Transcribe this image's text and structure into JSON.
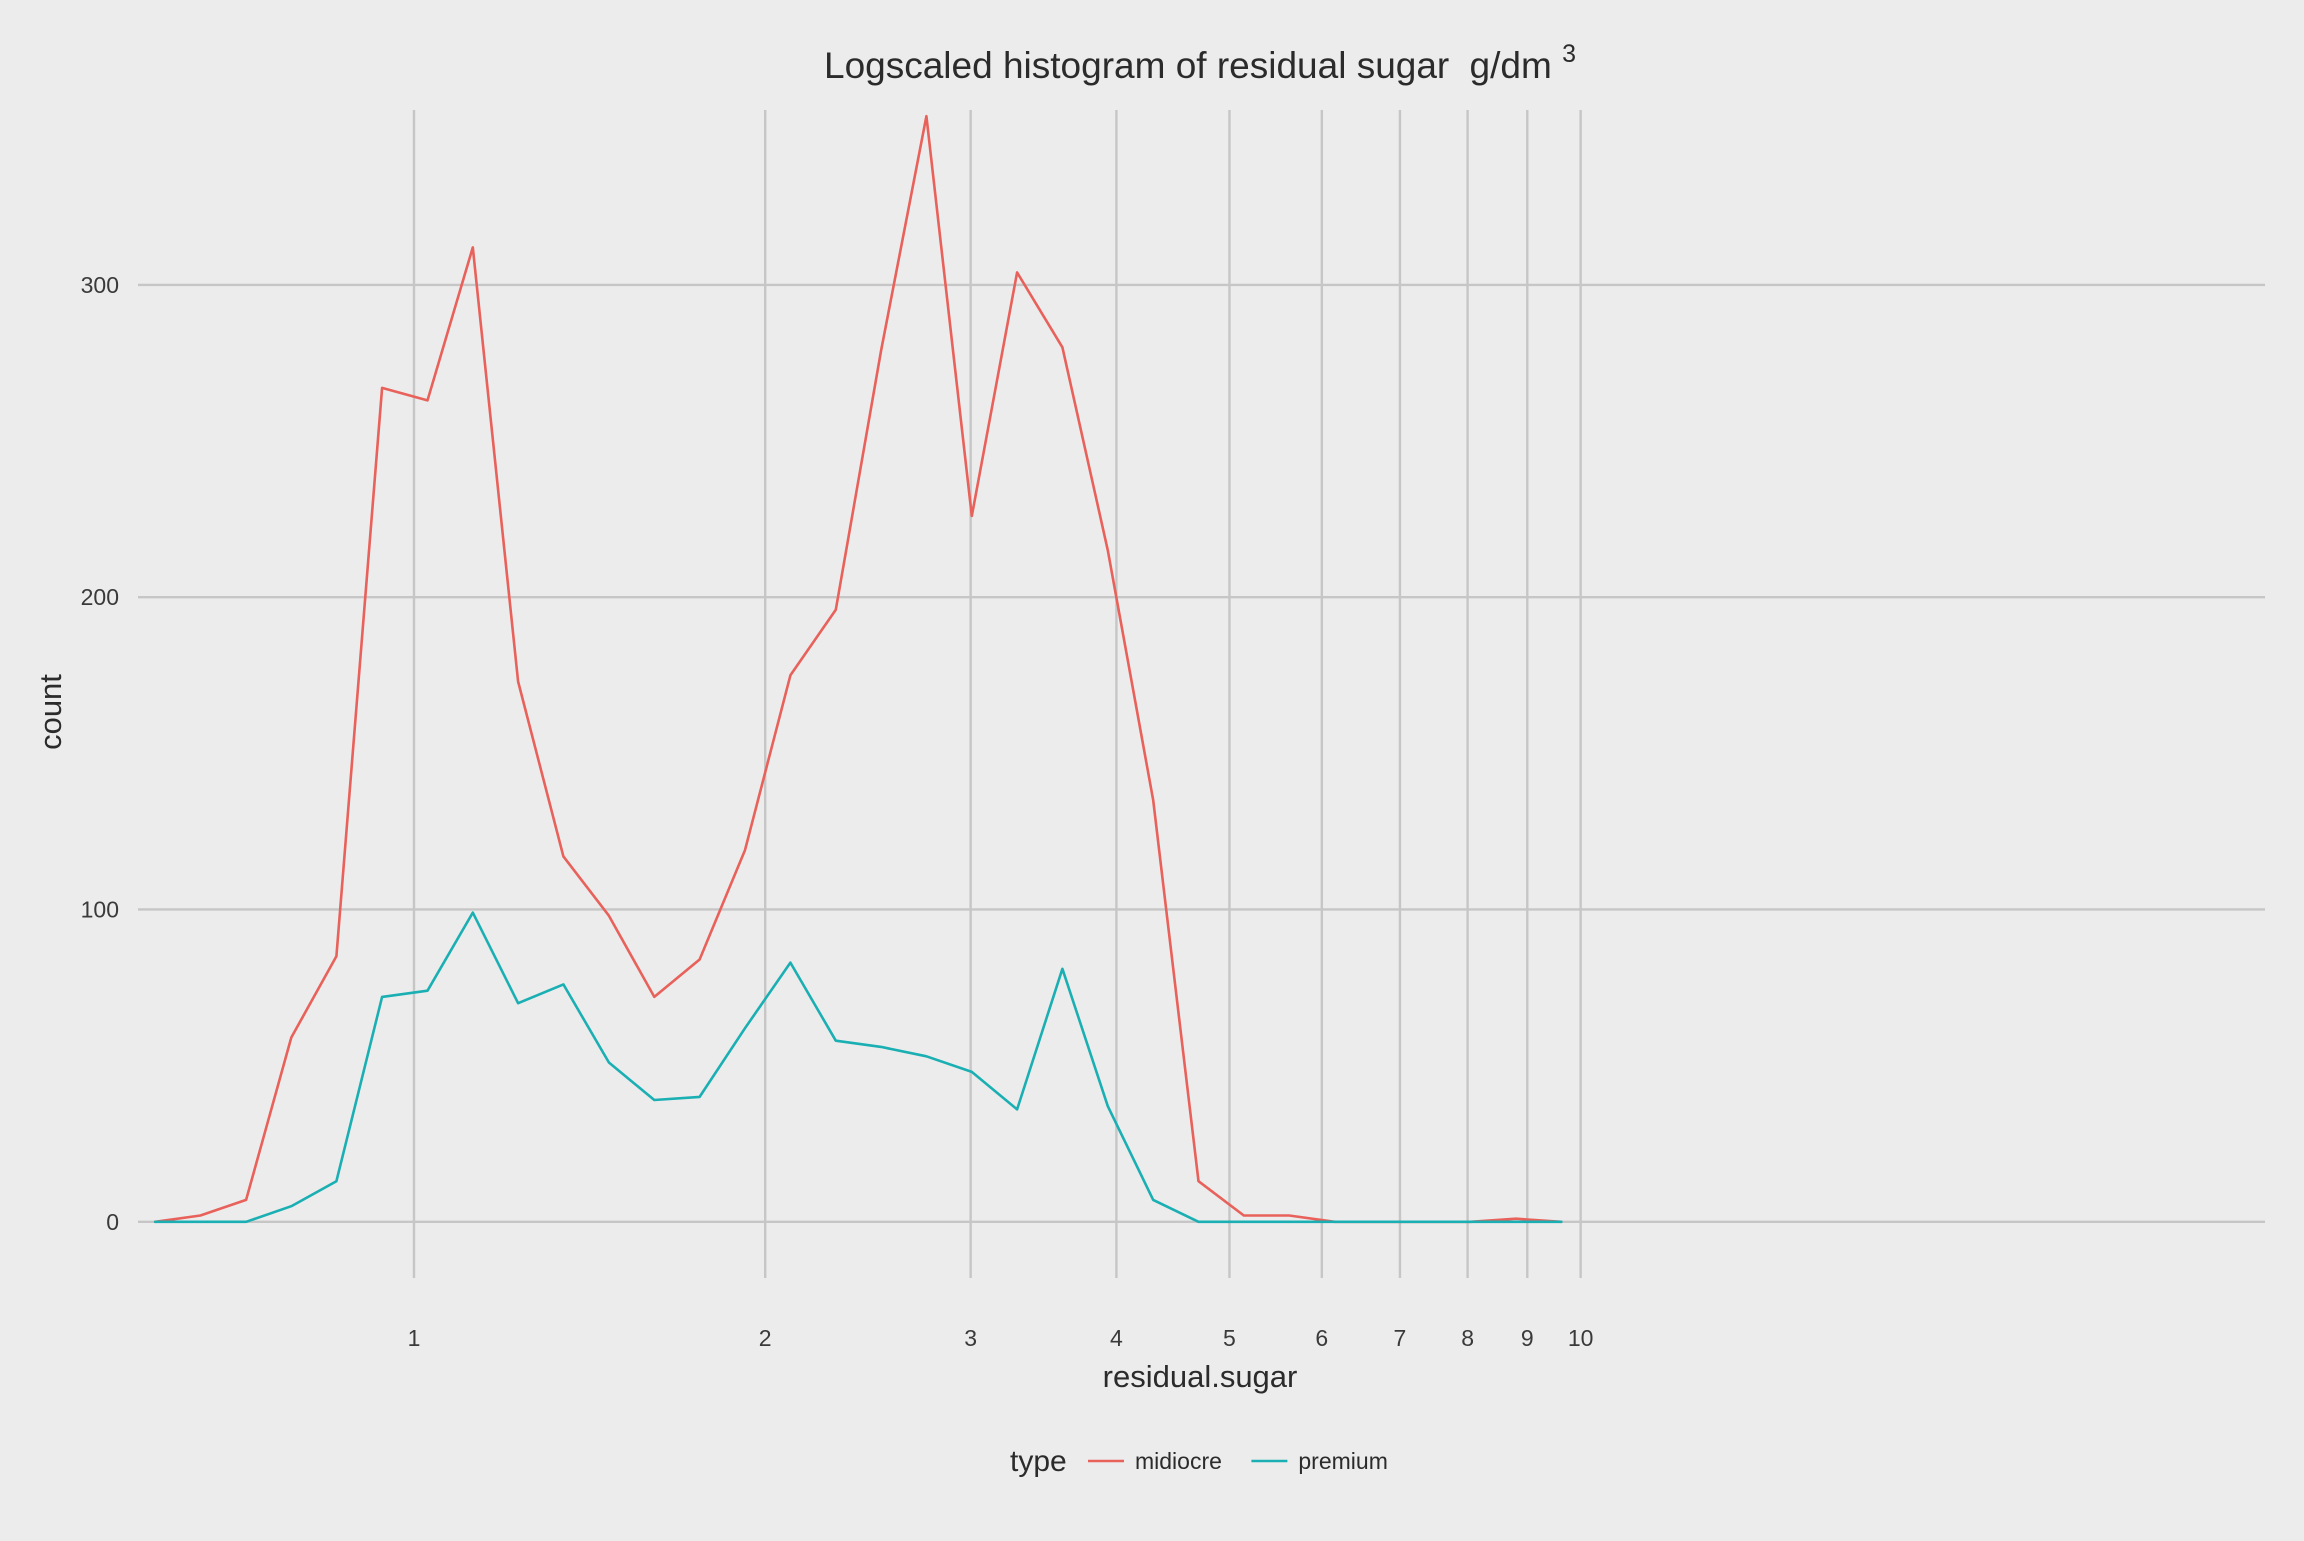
{
  "chart_data": {
    "type": "line",
    "title": "Logscaled histogram of residual sugar",
    "title_unit": "g/dm",
    "title_unit_superscript": "3",
    "xlabel": "residual.sugar",
    "ylabel": "count",
    "x_scale": "log10",
    "xlim": [
      0.58,
      38.6
    ],
    "ylim": [
      -18,
      356
    ],
    "grid": true,
    "x_ticks": [
      1,
      2,
      3,
      4,
      5,
      6,
      7,
      8,
      9,
      10
    ],
    "x_tick_labels": [
      "1",
      "2",
      "3",
      "4",
      "5",
      "6",
      "7",
      "8",
      "9",
      "10"
    ],
    "y_ticks": [
      0,
      100,
      200,
      300
    ],
    "y_tick_labels": [
      "0",
      "100",
      "200",
      "300"
    ],
    "legend": {
      "title": "type",
      "position": "bottom"
    },
    "x": [
      0.6,
      0.656,
      0.718,
      0.785,
      0.858,
      0.939,
      1.027,
      1.123,
      1.228,
      1.343,
      1.469,
      1.607,
      1.757,
      1.922,
      2.102,
      2.299,
      2.514,
      2.749,
      3.007,
      3.288,
      3.596,
      3.933,
      4.301,
      4.704,
      5.144,
      5.626,
      6.153,
      6.729,
      7.359,
      8.048,
      8.802,
      9.626,
      10.53,
      11.51,
      12.59,
      13.77,
      15.06,
      16.47,
      18.01,
      19.7,
      21.55,
      23.56,
      25.77,
      28.18,
      30.82,
      33.71
    ],
    "series": [
      {
        "name": "midiocre",
        "color": "#e8615a",
        "values": [
          0,
          2,
          7,
          59,
          85,
          267,
          263,
          312,
          173,
          117,
          98,
          72,
          84,
          119,
          175,
          196,
          279,
          354,
          226,
          304,
          280,
          215,
          135,
          13,
          2,
          2,
          0,
          0,
          0,
          0,
          1,
          0,
          null,
          null,
          null,
          null,
          null,
          null,
          null,
          null,
          null,
          null,
          null,
          null,
          null,
          null
        ]
      },
      {
        "name": "premium",
        "color": "#1aafb3",
        "values": [
          0,
          0,
          0,
          5,
          13,
          72,
          74,
          99,
          70,
          76,
          51,
          39,
          40,
          62,
          83,
          58,
          56,
          53,
          48,
          36,
          81,
          37,
          7,
          0,
          0,
          0,
          0,
          0,
          0,
          0,
          0,
          0,
          null,
          null,
          null,
          null,
          null,
          null,
          null,
          null,
          null,
          null,
          null,
          null,
          null,
          null
        ]
      }
    ]
  }
}
